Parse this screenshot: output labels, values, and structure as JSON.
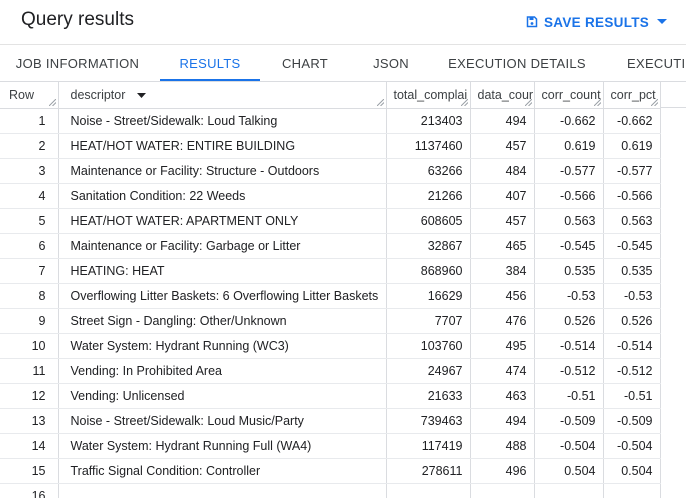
{
  "header": {
    "title": "Query results",
    "save_label": "SAVE RESULTS"
  },
  "tabs": [
    {
      "label": "JOB INFORMATION",
      "active": false
    },
    {
      "label": "RESULTS",
      "active": true
    },
    {
      "label": "CHART",
      "active": false
    },
    {
      "label": "JSON",
      "active": false
    },
    {
      "label": "EXECUTION DETAILS",
      "active": false
    },
    {
      "label": "EXECUTIO",
      "active": false
    }
  ],
  "colors": {
    "accent": "#1a73e8"
  },
  "table": {
    "columns": [
      "Row",
      "descriptor",
      "total_complai",
      "data_cour",
      "corr_count",
      "corr_pct"
    ],
    "rows": [
      [
        "1",
        "Noise - Street/Sidewalk: Loud Talking",
        "213403",
        "494",
        "-0.662",
        "-0.662"
      ],
      [
        "2",
        "HEAT/HOT WATER: ENTIRE BUILDING",
        "1137460",
        "457",
        "0.619",
        "0.619"
      ],
      [
        "3",
        "Maintenance or Facility: Structure - Outdoors",
        "63266",
        "484",
        "-0.577",
        "-0.577"
      ],
      [
        "4",
        "Sanitation Condition: 22 Weeds",
        "21266",
        "407",
        "-0.566",
        "-0.566"
      ],
      [
        "5",
        "HEAT/HOT WATER: APARTMENT ONLY",
        "608605",
        "457",
        "0.563",
        "0.563"
      ],
      [
        "6",
        "Maintenance or Facility: Garbage or Litter",
        "32867",
        "465",
        "-0.545",
        "-0.545"
      ],
      [
        "7",
        "HEATING: HEAT",
        "868960",
        "384",
        "0.535",
        "0.535"
      ],
      [
        "8",
        "Overflowing Litter Baskets: 6 Overflowing Litter Baskets",
        "16629",
        "456",
        "-0.53",
        "-0.53"
      ],
      [
        "9",
        "Street Sign - Dangling: Other/Unknown",
        "7707",
        "476",
        "0.526",
        "0.526"
      ],
      [
        "10",
        "Water System: Hydrant Running (WC3)",
        "103760",
        "495",
        "-0.514",
        "-0.514"
      ],
      [
        "11",
        "Vending: In Prohibited Area",
        "24967",
        "474",
        "-0.512",
        "-0.512"
      ],
      [
        "12",
        "Vending: Unlicensed",
        "21633",
        "463",
        "-0.51",
        "-0.51"
      ],
      [
        "13",
        "Noise - Street/Sidewalk: Loud Music/Party",
        "739463",
        "494",
        "-0.509",
        "-0.509"
      ],
      [
        "14",
        "Water System: Hydrant Running Full (WA4)",
        "117419",
        "488",
        "-0.504",
        "-0.504"
      ],
      [
        "15",
        "Traffic Signal Condition: Controller",
        "278611",
        "496",
        "0.504",
        "0.504"
      ],
      [
        "16",
        "",
        "",
        "",
        "",
        ""
      ]
    ]
  }
}
